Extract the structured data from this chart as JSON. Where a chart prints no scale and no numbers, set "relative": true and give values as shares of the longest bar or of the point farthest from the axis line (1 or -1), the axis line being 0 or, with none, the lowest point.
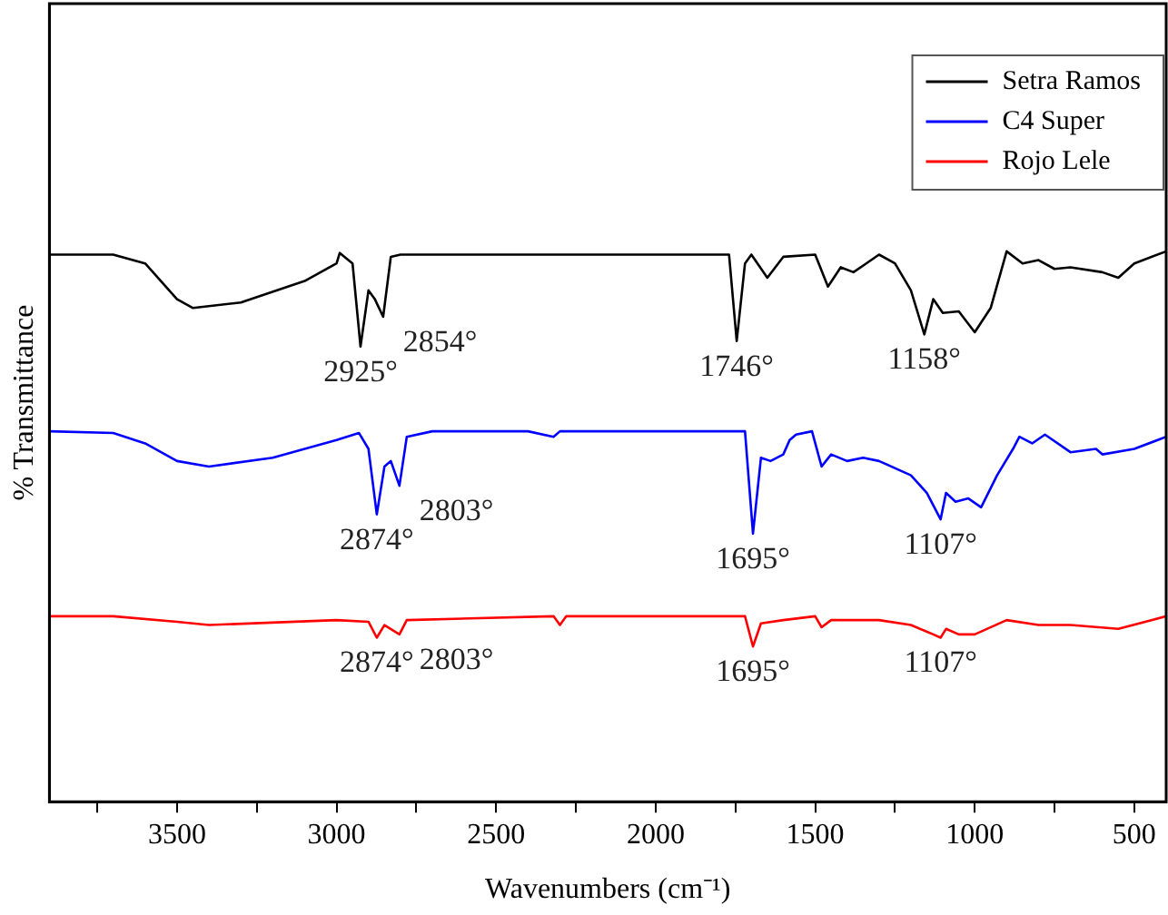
{
  "chart_data": {
    "type": "line",
    "relative": true,
    "xlabel": "Wavenumbers (cm⁻¹)",
    "ylabel": "% Transmittance",
    "xlim": [
      3900,
      400
    ],
    "xticks": [
      {
        "value": 3750,
        "label": null
      },
      3500,
      {
        "value": 3250,
        "label": null
      },
      3000,
      {
        "value": 2750,
        "label": null
      },
      2500,
      {
        "value": 2250,
        "label": null
      },
      2000,
      {
        "value": 1750,
        "label": null
      },
      1500,
      {
        "value": 1250,
        "label": null
      },
      1000,
      {
        "value": 750,
        "label": null
      },
      500
    ],
    "tick_labels": "x",
    "legend": "top right",
    "marker": "none",
    "line_style": "solid",
    "series": [
      {
        "name": "Setra Ramos",
        "color": "#000000",
        "x": [
          3900,
          3700,
          3600,
          3500,
          3450,
          3300,
          3100,
          3000,
          2990,
          2950,
          2925,
          2900,
          2880,
          2854,
          2830,
          2800,
          2400,
          2000,
          1780,
          1770,
          1746,
          1720,
          1700,
          1650,
          1600,
          1500,
          1460,
          1420,
          1380,
          1340,
          1300,
          1250,
          1200,
          1158,
          1130,
          1100,
          1050,
          1000,
          950,
          900,
          850,
          800,
          750,
          700,
          600,
          550,
          500,
          400
        ],
        "values": [
          0.994,
          0.994,
          0.978,
          0.913,
          0.897,
          0.907,
          0.946,
          0.978,
          0.997,
          0.978,
          0.827,
          0.929,
          0.913,
          0.881,
          0.99,
          0.994,
          0.994,
          0.994,
          0.994,
          0.994,
          0.837,
          0.978,
          0.994,
          0.952,
          0.99,
          0.994,
          0.936,
          0.971,
          0.962,
          0.978,
          0.994,
          0.978,
          0.929,
          0.849,
          0.913,
          0.888,
          0.891,
          0.853,
          0.897,
          1.0,
          0.978,
          0.984,
          0.968,
          0.971,
          0.962,
          0.952,
          0.978,
          1.0
        ]
      },
      {
        "name": "C4 Super",
        "color": "#0000ff",
        "x": [
          3900,
          3700,
          3600,
          3500,
          3400,
          3200,
          3000,
          2930,
          2900,
          2874,
          2850,
          2830,
          2803,
          2780,
          2700,
          2400,
          2320,
          2300,
          2000,
          1720,
          1695,
          1670,
          1640,
          1600,
          1580,
          1560,
          1510,
          1480,
          1450,
          1400,
          1350,
          1300,
          1200,
          1150,
          1107,
          1090,
          1060,
          1020,
          980,
          930,
          880,
          860,
          820,
          780,
          700,
          620,
          600,
          500,
          400
        ],
        "values": [
          0.673,
          0.67,
          0.651,
          0.619,
          0.609,
          0.625,
          0.657,
          0.67,
          0.641,
          0.522,
          0.609,
          0.619,
          0.574,
          0.663,
          0.673,
          0.673,
          0.663,
          0.673,
          0.673,
          0.673,
          0.487,
          0.625,
          0.619,
          0.631,
          0.657,
          0.667,
          0.673,
          0.609,
          0.631,
          0.619,
          0.625,
          0.619,
          0.593,
          0.561,
          0.513,
          0.561,
          0.545,
          0.551,
          0.535,
          0.593,
          0.641,
          0.663,
          0.651,
          0.667,
          0.635,
          0.641,
          0.631,
          0.641,
          0.663
        ]
      },
      {
        "name": "Rojo Lele",
        "color": "#ff0000",
        "x": [
          3900,
          3700,
          3500,
          3400,
          3000,
          2900,
          2874,
          2850,
          2803,
          2780,
          2320,
          2300,
          2280,
          1720,
          1695,
          1670,
          1600,
          1500,
          1480,
          1450,
          1300,
          1200,
          1130,
          1107,
          1090,
          1050,
          1000,
          900,
          800,
          700,
          550,
          400
        ],
        "values": [
          0.337,
          0.337,
          0.327,
          0.321,
          0.33,
          0.327,
          0.298,
          0.321,
          0.304,
          0.33,
          0.337,
          0.321,
          0.337,
          0.337,
          0.282,
          0.324,
          0.33,
          0.337,
          0.317,
          0.33,
          0.33,
          0.321,
          0.304,
          0.298,
          0.314,
          0.304,
          0.304,
          0.33,
          0.321,
          0.321,
          0.314,
          0.337
        ]
      }
    ],
    "annotations": [
      {
        "text": "2925°",
        "x": 2925,
        "y": 0.827
      },
      {
        "text": "2854°",
        "x": 2854,
        "y": 0.881
      },
      {
        "text": "1746°",
        "x": 1746,
        "y": 0.837
      },
      {
        "text": "1158°",
        "x": 1158,
        "y": 0.849
      },
      {
        "text": "2874°",
        "x": 2874,
        "y": 0.522
      },
      {
        "text": "2803°",
        "x": 2803,
        "y": 0.574
      },
      {
        "text": "1695°",
        "x": 1695,
        "y": 0.487
      },
      {
        "text": "1107°",
        "x": 1107,
        "y": 0.513
      },
      {
        "text": "2874°",
        "x": 2874,
        "y": 0.298
      },
      {
        "text": "2803°",
        "x": 2803,
        "y": 0.304
      },
      {
        "text": "1695°",
        "x": 1695,
        "y": 0.282
      },
      {
        "text": "1107°",
        "x": 1107,
        "y": 0.298
      }
    ]
  }
}
